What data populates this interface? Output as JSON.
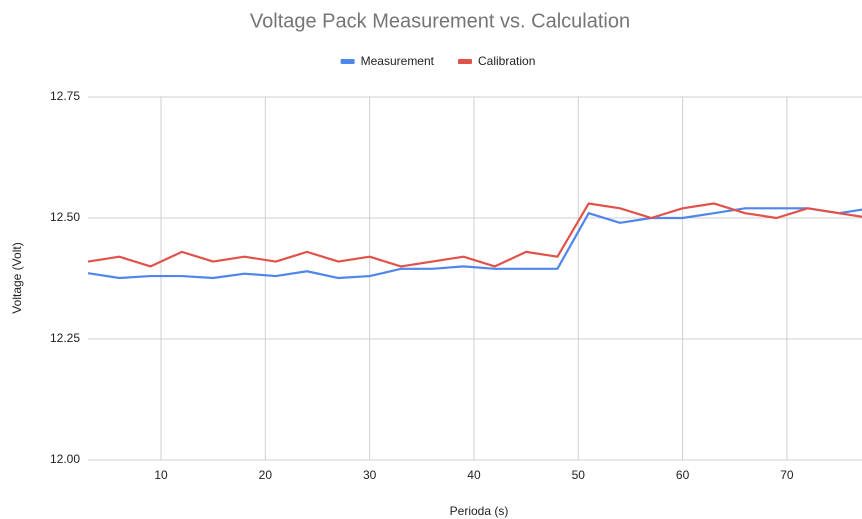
{
  "chart_data": {
    "type": "line",
    "title": "Voltage Pack Measurement vs. Calculation",
    "x_label": "Perioda (s)",
    "y_label": "Voltage (Volt)",
    "x": [
      3,
      6,
      9,
      12,
      15,
      18,
      21,
      24,
      27,
      30,
      33,
      36,
      39,
      42,
      45,
      48,
      51,
      54,
      57,
      60,
      63,
      66,
      69,
      72,
      75,
      78
    ],
    "series": [
      {
        "name": "Measurement",
        "color": "#4f86ec",
        "values": [
          12.386,
          12.376,
          12.38,
          12.38,
          12.376,
          12.385,
          12.38,
          12.39,
          12.376,
          12.38,
          12.395,
          12.395,
          12.4,
          12.395,
          12.395,
          12.395,
          12.51,
          12.49,
          12.5,
          12.5,
          12.51,
          12.52,
          12.52,
          12.52,
          12.51,
          12.52
        ]
      },
      {
        "name": "Calibration",
        "color": "#e0524a",
        "values": [
          12.41,
          12.42,
          12.4,
          12.43,
          12.41,
          12.42,
          12.41,
          12.43,
          12.41,
          12.42,
          12.4,
          12.41,
          12.42,
          12.4,
          12.43,
          12.42,
          12.53,
          12.52,
          12.5,
          12.52,
          12.53,
          12.51,
          12.5,
          12.52,
          12.51,
          12.5
        ]
      }
    ],
    "xlim": [
      3,
      77.2
    ],
    "xticks": [
      10,
      20,
      30,
      40,
      50,
      60,
      70
    ],
    "ylim": [
      12.0,
      12.75
    ],
    "yticks": [
      {
        "value": 12.0,
        "label": "12.00"
      },
      {
        "value": 12.25,
        "label": "12.25"
      },
      {
        "value": 12.5,
        "label": "12.50"
      },
      {
        "value": 12.75,
        "label": "12.75"
      }
    ],
    "grid": true,
    "legend": "top"
  }
}
